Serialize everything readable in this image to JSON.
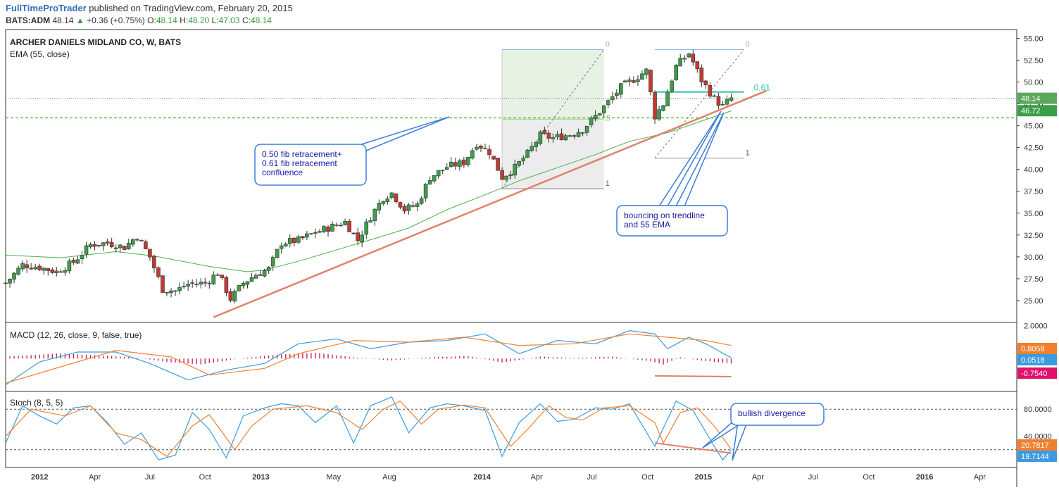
{
  "header": {
    "author": "FullTimeProTrader",
    "published": "published on TradingView.com, February 20, 2015",
    "symbol": "BATS:ADM",
    "last": "48.14",
    "change_arrow": "▲",
    "change": "+0.36 (+0.75%)",
    "o_label": "O:",
    "o": "48.14",
    "h_label": "H:",
    "h": "48.20",
    "l_label": "L:",
    "l": "47.03",
    "c_label": "C:",
    "c": "48.14"
  },
  "colors": {
    "up": "#3d9e4a",
    "down": "#c23b32",
    "ema": "#4caf50",
    "trendline": "#e0826b",
    "macd": "#3b9be0",
    "signal": "#f08030",
    "hist": "#c2185b",
    "annot_border": "#3b7dd8",
    "annot_text": "#1a1aa6",
    "fib_green": "#2ebfa5"
  },
  "chart_data": [
    {
      "type": "candlestick",
      "title": "ARCHER DANIELS MIDLAND CO, W, BATS",
      "indicator": "EMA (55, close)",
      "x_ticks": [
        "2012",
        "Apr",
        "Jul",
        "Oct",
        "2013",
        "May",
        "Aug",
        "2014",
        "Apr",
        "Jul",
        "Oct",
        "2015",
        "Apr",
        "Jul",
        "Oct",
        "2016",
        "Apr"
      ],
      "y_ticks": [
        "55.00",
        "52.50",
        "50.00",
        "47.50",
        "45.00",
        "42.50",
        "40.00",
        "37.50",
        "35.00",
        "32.50",
        "30.00",
        "27.50",
        "25.00"
      ],
      "ylim": [
        22.5,
        56
      ],
      "price_labels": [
        {
          "text": "48.14",
          "value": 48.14
        },
        {
          "text": "46.72",
          "value": 46.72
        }
      ],
      "horizontal_level": 45.9,
      "fib_left": {
        "start": "2014-02-03",
        "end": "2014-07-21",
        "low": 37.8,
        "high": 53.7,
        "labels": [
          "0",
          ".5",
          "1"
        ]
      },
      "fib_right": {
        "start": "2014-10-13",
        "end": "2015-03-09",
        "low": 41.3,
        "high": 53.7,
        "label_061": "0.61",
        "labels": [
          "0",
          "1"
        ]
      },
      "trendline": {
        "from": {
          "date": "2012-10-15",
          "price": 23.1
        },
        "to": {
          "date": "2015-04-15",
          "price": 49.0
        }
      },
      "ema_55": [
        [
          "2011-11-07",
          30.2
        ],
        [
          "2012-02-06",
          29.9
        ],
        [
          "2012-05-07",
          30.6
        ],
        [
          "2012-07-09",
          30.1
        ],
        [
          "2012-10-08",
          28.9
        ],
        [
          "2012-12-10",
          28.3
        ],
        [
          "2013-01-07",
          28.5
        ],
        [
          "2013-03-04",
          29.5
        ],
        [
          "2013-05-06",
          30.8
        ],
        [
          "2013-07-08",
          32.1
        ],
        [
          "2013-09-02",
          33.3
        ],
        [
          "2013-11-04",
          35.4
        ],
        [
          "2014-01-06",
          37.1
        ],
        [
          "2014-03-03",
          38.7
        ],
        [
          "2014-05-05",
          40.2
        ],
        [
          "2014-07-07",
          41.7
        ],
        [
          "2014-09-01",
          43.2
        ],
        [
          "2014-11-03",
          44.2
        ],
        [
          "2015-01-05",
          45.7
        ],
        [
          "2015-02-16",
          46.7
        ]
      ],
      "close_path": [
        [
          "2011-11-07",
          27.0
        ],
        [
          "2011-12-05",
          29.1
        ],
        [
          "2012-01-02",
          28.8
        ],
        [
          "2012-01-30",
          28.3
        ],
        [
          "2012-02-27",
          29.4
        ],
        [
          "2012-03-26",
          31.4
        ],
        [
          "2012-04-23",
          31.6
        ],
        [
          "2012-05-21",
          31.1
        ],
        [
          "2012-06-11",
          32.4
        ],
        [
          "2012-07-02",
          30.0
        ],
        [
          "2012-07-23",
          26.3
        ],
        [
          "2012-08-13",
          26.1
        ],
        [
          "2012-09-03",
          26.9
        ],
        [
          "2012-10-01",
          27.0
        ],
        [
          "2012-10-22",
          28.2
        ],
        [
          "2012-11-12",
          25.2
        ],
        [
          "2012-12-03",
          27.0
        ],
        [
          "2012-12-24",
          28.0
        ],
        [
          "2013-01-14",
          28.6
        ],
        [
          "2013-02-04",
          31.6
        ],
        [
          "2013-03-04",
          31.9
        ],
        [
          "2013-04-01",
          32.8
        ],
        [
          "2013-04-22",
          33.3
        ],
        [
          "2013-05-20",
          34.0
        ],
        [
          "2013-06-10",
          31.9
        ],
        [
          "2013-07-01",
          34.6
        ],
        [
          "2013-07-22",
          36.8
        ],
        [
          "2013-08-05",
          37.3
        ],
        [
          "2013-08-26",
          35.4
        ],
        [
          "2013-09-16",
          36.0
        ],
        [
          "2013-10-07",
          39.1
        ],
        [
          "2013-11-04",
          40.3
        ],
        [
          "2013-12-02",
          40.8
        ],
        [
          "2013-12-23",
          43.0
        ],
        [
          "2014-01-13",
          42.0
        ],
        [
          "2014-02-03",
          39.1
        ],
        [
          "2014-02-24",
          40.2
        ],
        [
          "2014-03-17",
          41.8
        ],
        [
          "2014-04-07",
          43.9
        ],
        [
          "2014-04-28",
          43.6
        ],
        [
          "2014-05-26",
          44.0
        ],
        [
          "2014-06-16",
          44.6
        ],
        [
          "2014-07-07",
          46.1
        ],
        [
          "2014-07-28",
          47.7
        ],
        [
          "2014-08-18",
          49.4
        ],
        [
          "2014-09-08",
          50.3
        ],
        [
          "2014-09-29",
          51.3
        ],
        [
          "2014-10-13",
          46.1
        ],
        [
          "2014-10-27",
          47.5
        ],
        [
          "2014-11-17",
          51.8
        ],
        [
          "2014-12-08",
          53.3
        ],
        [
          "2014-12-29",
          50.2
        ],
        [
          "2015-01-19",
          48.1
        ],
        [
          "2015-02-02",
          47.2
        ],
        [
          "2015-02-16",
          48.14
        ]
      ],
      "annotations": [
        {
          "text": [
            "0.50 fib retracement+",
            "0.61 fib retracement",
            "confluence"
          ]
        },
        {
          "text": [
            "bouncing on trendline",
            "and 55 EMA"
          ]
        }
      ]
    },
    {
      "type": "line",
      "title": "MACD (12, 26, close, 9, false, true)",
      "y_ticks": [
        "2.0000"
      ],
      "ylim": [
        -2.0,
        2.2
      ],
      "value_labels": [
        {
          "text": "0.8058",
          "value": 0.8058,
          "color": "#f08030"
        },
        {
          "text": "0.0518",
          "value": 0.0518,
          "color": "#3b9be0"
        },
        {
          "text": "-0.7540",
          "value": -0.754,
          "color": "#e0106b"
        }
      ],
      "series": [
        {
          "name": "MACD",
          "values": [
            [
              "2011-11-07",
              -1.6
            ],
            [
              "2012-01-02",
              -0.2
            ],
            [
              "2012-03-05",
              0.4
            ],
            [
              "2012-05-07",
              0.4
            ],
            [
              "2012-07-02",
              -0.3
            ],
            [
              "2012-09-03",
              -1.3
            ],
            [
              "2012-11-05",
              -0.7
            ],
            [
              "2013-01-07",
              -0.3
            ],
            [
              "2013-03-04",
              0.9
            ],
            [
              "2013-05-06",
              1.2
            ],
            [
              "2013-07-01",
              0.6
            ],
            [
              "2013-09-02",
              1.0
            ],
            [
              "2013-11-04",
              1.1
            ],
            [
              "2014-01-06",
              1.5
            ],
            [
              "2014-03-03",
              0.3
            ],
            [
              "2014-05-05",
              1.1
            ],
            [
              "2014-07-07",
              0.9
            ],
            [
              "2014-09-01",
              1.7
            ],
            [
              "2014-10-13",
              1.5
            ],
            [
              "2014-11-03",
              0.6
            ],
            [
              "2014-12-08",
              1.3
            ],
            [
              "2015-01-05",
              0.9
            ],
            [
              "2015-02-16",
              0.05
            ]
          ]
        },
        {
          "name": "Signal",
          "values": [
            [
              "2011-11-07",
              -1.5
            ],
            [
              "2012-02-06",
              -0.5
            ],
            [
              "2012-05-07",
              0.5
            ],
            [
              "2012-08-06",
              0.1
            ],
            [
              "2012-10-08",
              -1.0
            ],
            [
              "2013-01-07",
              -0.6
            ],
            [
              "2013-03-04",
              0.3
            ],
            [
              "2013-06-03",
              1.1
            ],
            [
              "2013-09-02",
              1.0
            ],
            [
              "2013-12-02",
              1.3
            ],
            [
              "2014-03-03",
              0.8
            ],
            [
              "2014-06-02",
              0.9
            ],
            [
              "2014-09-01",
              1.5
            ],
            [
              "2014-11-03",
              1.3
            ],
            [
              "2015-01-05",
              1.1
            ],
            [
              "2015-02-16",
              0.8
            ]
          ]
        }
      ],
      "histogram": [
        [
          "2011-11-07",
          0.3
        ],
        [
          "2012-02-06",
          0.8
        ],
        [
          "2012-04-02",
          0.5
        ],
        [
          "2012-06-04",
          0.2
        ],
        [
          "2012-07-30",
          -0.5
        ],
        [
          "2012-09-24",
          -0.9
        ],
        [
          "2012-11-26",
          0.0
        ],
        [
          "2013-01-28",
          0.6
        ],
        [
          "2013-04-01",
          0.9
        ],
        [
          "2013-06-03",
          0.2
        ],
        [
          "2013-08-05",
          -0.3
        ],
        [
          "2013-10-07",
          0.2
        ],
        [
          "2013-12-09",
          0.4
        ],
        [
          "2014-02-03",
          -0.6
        ],
        [
          "2014-04-07",
          0.3
        ],
        [
          "2014-06-02",
          0.1
        ],
        [
          "2014-08-04",
          0.3
        ],
        [
          "2014-10-06",
          -0.4
        ],
        [
          "2014-10-27",
          -0.9
        ],
        [
          "2014-11-24",
          0.2
        ],
        [
          "2014-12-29",
          -0.3
        ],
        [
          "2015-02-16",
          -0.75
        ]
      ],
      "divergence_line": {
        "from": {
          "date": "2014-10-13",
          "value": -1.05
        },
        "to": {
          "date": "2015-02-16",
          "value": -1.1
        }
      }
    },
    {
      "type": "line",
      "title": "Stoch (8, 5, 5)",
      "y_ticks": [
        "80.0000",
        "40.0000"
      ],
      "ylim": [
        0,
        100
      ],
      "bands": [
        80,
        20
      ],
      "value_labels": [
        {
          "text": "20.7817",
          "value": 20.7817,
          "color": "#f08030"
        },
        {
          "text": "19.7144",
          "value": 19.7144,
          "color": "#3b9be0"
        }
      ],
      "series": [
        {
          "name": "%K",
          "values": [
            [
              "2011-11-07",
              30
            ],
            [
              "2011-12-05",
              85
            ],
            [
              "2012-01-02",
              70
            ],
            [
              "2012-01-30",
              58
            ],
            [
              "2012-02-27",
              82
            ],
            [
              "2012-03-26",
              85
            ],
            [
              "2012-04-23",
              60
            ],
            [
              "2012-05-21",
              28
            ],
            [
              "2012-06-18",
              45
            ],
            [
              "2012-07-16",
              5
            ],
            [
              "2012-08-13",
              12
            ],
            [
              "2012-09-10",
              75
            ],
            [
              "2012-10-08",
              50
            ],
            [
              "2012-11-05",
              8
            ],
            [
              "2012-12-03",
              70
            ],
            [
              "2013-01-07",
              82
            ],
            [
              "2013-02-04",
              88
            ],
            [
              "2013-03-04",
              85
            ],
            [
              "2013-04-01",
              60
            ],
            [
              "2013-05-06",
              85
            ],
            [
              "2013-06-03",
              30
            ],
            [
              "2013-07-01",
              85
            ],
            [
              "2013-08-05",
              98
            ],
            [
              "2013-09-02",
              45
            ],
            [
              "2013-10-07",
              82
            ],
            [
              "2013-11-04",
              88
            ],
            [
              "2013-12-02",
              85
            ],
            [
              "2014-01-06",
              78
            ],
            [
              "2014-02-03",
              10
            ],
            [
              "2014-03-03",
              60
            ],
            [
              "2014-04-07",
              88
            ],
            [
              "2014-05-05",
              62
            ],
            [
              "2014-06-02",
              65
            ],
            [
              "2014-07-07",
              82
            ],
            [
              "2014-08-04",
              80
            ],
            [
              "2014-09-01",
              88
            ],
            [
              "2014-10-13",
              25
            ],
            [
              "2014-11-17",
              92
            ],
            [
              "2014-12-15",
              78
            ],
            [
              "2015-01-19",
              25
            ],
            [
              "2015-02-02",
              5
            ],
            [
              "2015-02-16",
              19.7
            ]
          ]
        },
        {
          "name": "%D",
          "values": [
            [
              "2011-11-07",
              40
            ],
            [
              "2011-12-19",
              80
            ],
            [
              "2012-02-13",
              70
            ],
            [
              "2012-03-26",
              85
            ],
            [
              "2012-05-07",
              45
            ],
            [
              "2012-06-18",
              35
            ],
            [
              "2012-07-30",
              10
            ],
            [
              "2012-09-10",
              55
            ],
            [
              "2012-10-08",
              72
            ],
            [
              "2012-11-19",
              20
            ],
            [
              "2012-12-17",
              55
            ],
            [
              "2013-01-21",
              80
            ],
            [
              "2013-03-18",
              85
            ],
            [
              "2013-05-06",
              75
            ],
            [
              "2013-06-17",
              50
            ],
            [
              "2013-07-22",
              80
            ],
            [
              "2013-08-19",
              92
            ],
            [
              "2013-09-23",
              58
            ],
            [
              "2013-10-21",
              80
            ],
            [
              "2013-12-02",
              86
            ],
            [
              "2014-01-06",
              82
            ],
            [
              "2014-02-17",
              25
            ],
            [
              "2014-03-17",
              50
            ],
            [
              "2014-04-21",
              85
            ],
            [
              "2014-05-19",
              68
            ],
            [
              "2014-06-16",
              64
            ],
            [
              "2014-07-21",
              82
            ],
            [
              "2014-09-01",
              85
            ],
            [
              "2014-10-13",
              60
            ],
            [
              "2014-10-27",
              30
            ],
            [
              "2014-11-24",
              75
            ],
            [
              "2014-12-22",
              82
            ],
            [
              "2015-01-19",
              55
            ],
            [
              "2015-02-16",
              20.8
            ]
          ]
        }
      ],
      "divergence_line": {
        "from": {
          "date": "2014-10-13",
          "value": 30
        },
        "to": {
          "date": "2015-02-16",
          "value": 15
        }
      },
      "annotations": [
        {
          "text": [
            "bullish divergence"
          ]
        }
      ]
    }
  ]
}
